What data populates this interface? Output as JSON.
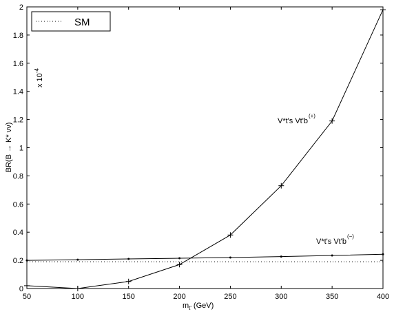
{
  "chart_data": {
    "type": "line",
    "xlabel": "m",
    "xlabel_sub": "t'",
    "xlabel_units": "(GeV)",
    "ylabel": "BR(B → K* νν)",
    "y_exponent_label": "x 10",
    "y_exponent_power": "-4",
    "xlim": [
      50,
      400
    ],
    "ylim": [
      0,
      2
    ],
    "xticks": [
      "50",
      "100",
      "150",
      "200",
      "250",
      "300",
      "350",
      "400"
    ],
    "yticks": [
      "0",
      "0.2",
      "0.4",
      "0.6",
      "0.8",
      "1",
      "1.2",
      "1.4",
      "1.6",
      "1.8",
      "2"
    ],
    "grid": false,
    "legend": {
      "position": "top-left",
      "entries": [
        "SM"
      ]
    },
    "series": [
      {
        "name": "SM",
        "style": "dotted",
        "x": [
          50,
          400
        ],
        "y": [
          0.19,
          0.19
        ]
      },
      {
        "name": "plus",
        "marker": "+",
        "label_main": "V*t's Vt'b",
        "label_sup": "(+)",
        "x": [
          50,
          100,
          150,
          200,
          250,
          300,
          350,
          400
        ],
        "y": [
          0.02,
          0.0,
          0.05,
          0.17,
          0.38,
          0.73,
          1.19,
          1.98
        ]
      },
      {
        "name": "minus",
        "marker": ".",
        "label_main": "V*t's Vt'b",
        "label_sup": "(−)",
        "x": [
          50,
          100,
          150,
          200,
          250,
          300,
          350,
          400
        ],
        "y": [
          0.2,
          0.205,
          0.21,
          0.215,
          0.22,
          0.227,
          0.235,
          0.243
        ]
      }
    ]
  }
}
